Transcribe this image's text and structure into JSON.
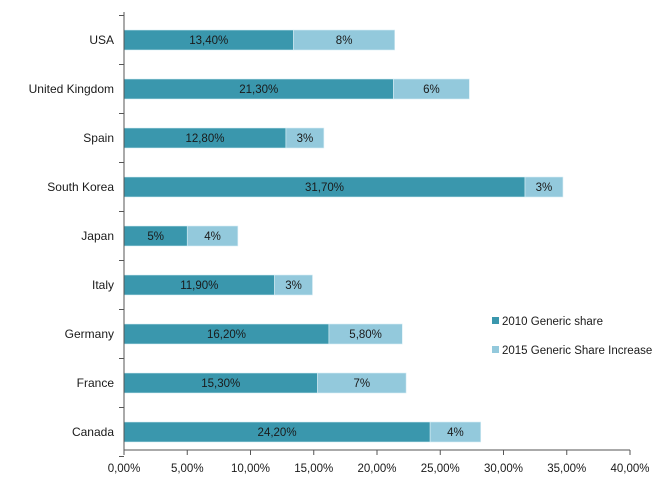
{
  "chart_data": {
    "type": "bar",
    "orientation": "horizontal",
    "stacked": true,
    "categories": [
      "USA",
      "United Kingdom",
      "Spain",
      "South Korea",
      "Japan",
      "Italy",
      "Germany",
      "France",
      "Canada"
    ],
    "series": [
      {
        "name": "2010 Generic share",
        "color": "#3a97ad",
        "values": [
          13.4,
          21.3,
          12.8,
          31.7,
          5.0,
          11.9,
          16.2,
          15.3,
          24.2
        ],
        "labels": [
          "13,40%",
          "21,30%",
          "12,80%",
          "31,70%",
          "5%",
          "11,90%",
          "16,20%",
          "15,30%",
          "24,20%"
        ]
      },
      {
        "name": "2015 Generic Share Increase",
        "color": "#93c9dc",
        "values": [
          8.0,
          6.0,
          3.0,
          3.0,
          4.0,
          3.0,
          5.8,
          7.0,
          4.0
        ],
        "labels": [
          "8%",
          "6%",
          "3%",
          "3%",
          "4%",
          "3%",
          "5,80%",
          "7%",
          "4%"
        ]
      }
    ],
    "xlim": [
      0,
      40
    ],
    "xticks": [
      "0,00%",
      "5,00%",
      "10,00%",
      "15,00%",
      "20,00%",
      "25,00%",
      "30,00%",
      "35,00%",
      "40,00%"
    ],
    "title": "",
    "xlabel": "",
    "ylabel": "",
    "grid": false,
    "legend_position": "right"
  }
}
